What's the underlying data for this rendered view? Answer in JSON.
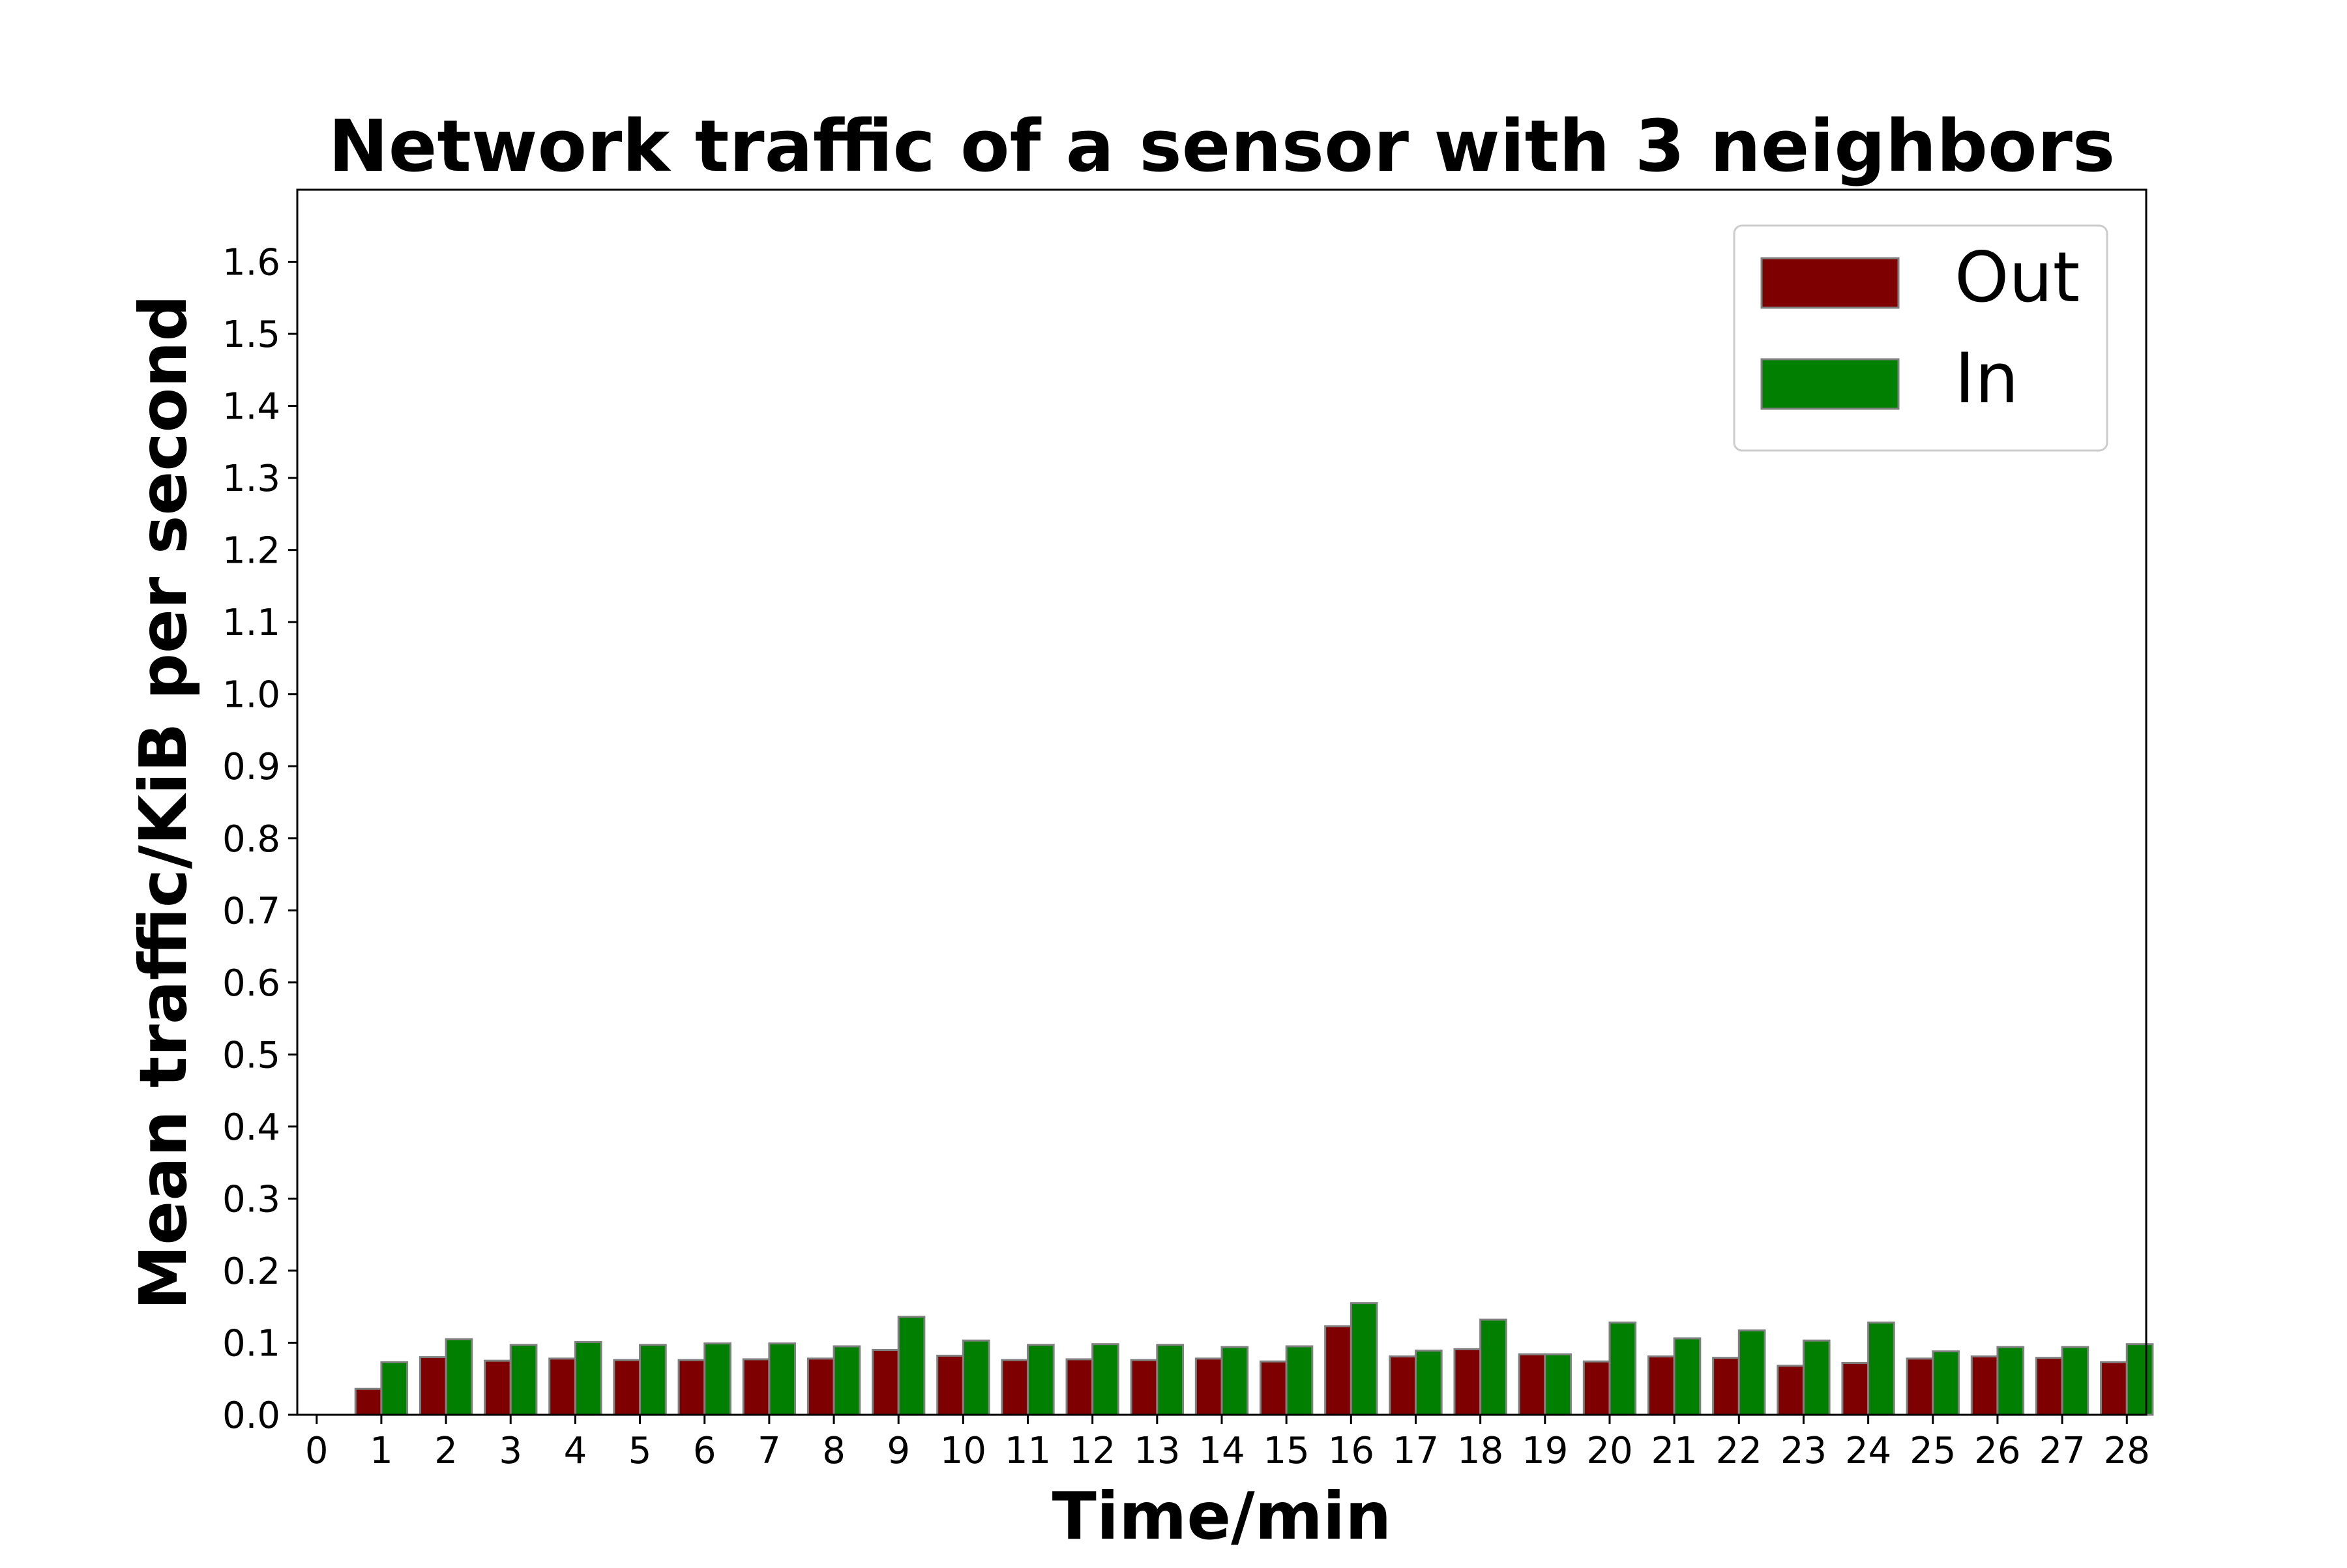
{
  "chart_data": {
    "type": "bar",
    "title": "Network traffic of a sensor with 3 neighbors",
    "xlabel": "Time/min",
    "ylabel": "Mean traffic/KiB per second",
    "xlim": [
      -0.3,
      28.3
    ],
    "ylim": [
      0,
      1.7
    ],
    "x_ticks": [
      "0",
      "1",
      "2",
      "3",
      "4",
      "5",
      "6",
      "7",
      "8",
      "9",
      "10",
      "11",
      "12",
      "13",
      "14",
      "15",
      "16",
      "17",
      "18",
      "19",
      "20",
      "21",
      "22",
      "23",
      "24",
      "25",
      "26",
      "27",
      "28"
    ],
    "y_ticks": [
      "0.0",
      "0.1",
      "0.2",
      "0.3",
      "0.4",
      "0.5",
      "0.6",
      "0.7",
      "0.8",
      "0.9",
      "1.0",
      "1.1",
      "1.2",
      "1.3",
      "1.4",
      "1.5",
      "1.6"
    ],
    "categories": [
      1,
      2,
      3,
      4,
      5,
      6,
      7,
      8,
      9,
      10,
      11,
      12,
      13,
      14,
      15,
      16,
      17,
      18,
      19,
      20,
      21,
      22,
      23,
      24,
      25,
      26,
      27,
      28
    ],
    "legend_position": "upper right",
    "grid": false,
    "series": [
      {
        "name": "Out",
        "color": "#7f0000",
        "values": [
          0.036,
          0.08,
          0.075,
          0.078,
          0.076,
          0.076,
          0.077,
          0.078,
          0.09,
          0.082,
          0.076,
          0.077,
          0.076,
          0.078,
          0.074,
          0.123,
          0.081,
          0.091,
          0.084,
          0.074,
          0.081,
          0.079,
          0.068,
          0.072,
          0.078,
          0.081,
          0.079,
          0.073
        ]
      },
      {
        "name": "In",
        "color": "#007f00",
        "values": [
          0.073,
          0.105,
          0.097,
          0.101,
          0.097,
          0.099,
          0.099,
          0.095,
          0.136,
          0.103,
          0.097,
          0.098,
          0.097,
          0.094,
          0.095,
          0.155,
          0.089,
          0.132,
          0.084,
          0.128,
          0.106,
          0.117,
          0.103,
          0.128,
          0.088,
          0.094,
          0.094,
          0.098
        ]
      }
    ]
  }
}
